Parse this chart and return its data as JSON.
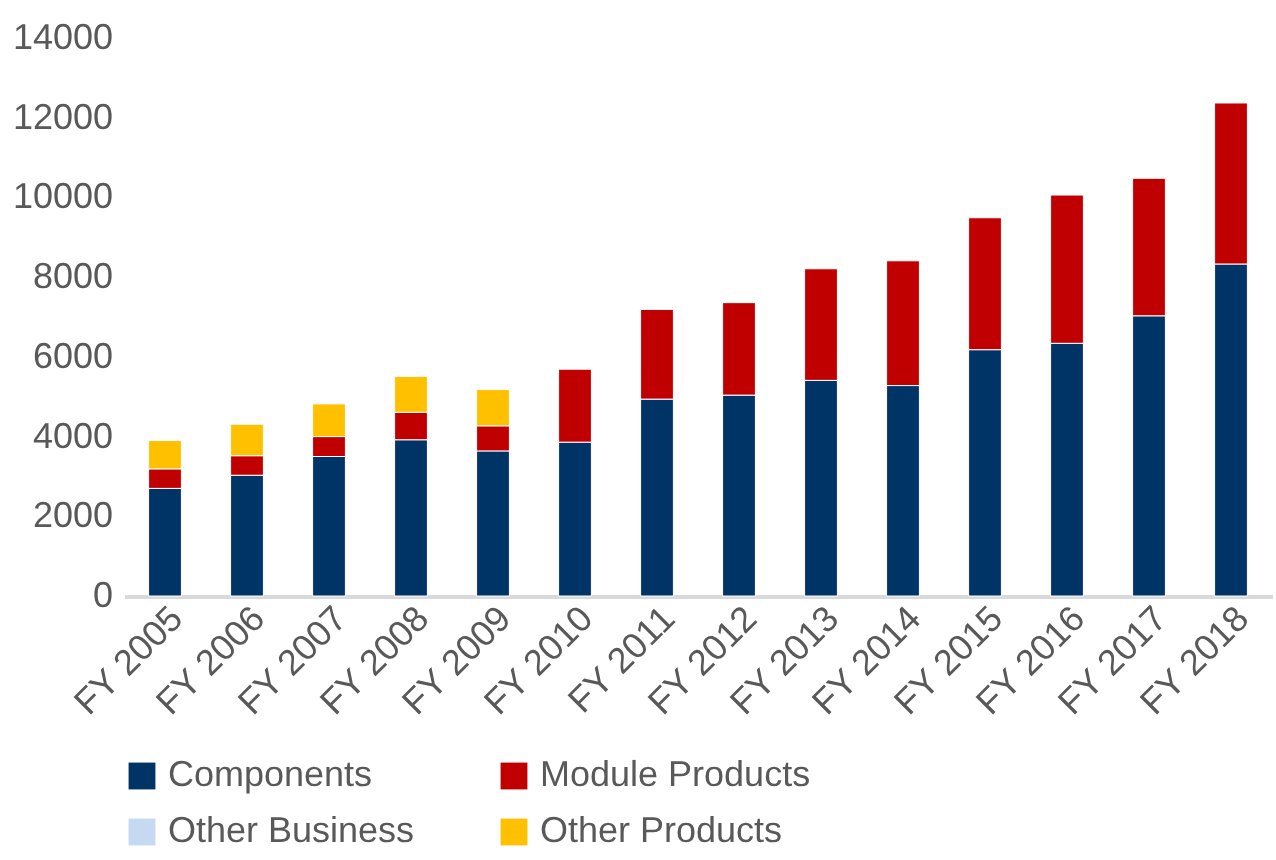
{
  "chart_data": {
    "type": "bar",
    "stacked": true,
    "categories": [
      "FY 2005",
      "FY 2006",
      "FY 2007",
      "FY 2008",
      "FY 2009",
      "FY 2010",
      "FY 2011",
      "FY 2012",
      "FY 2013",
      "FY 2014",
      "FY 2015",
      "FY 2016",
      "FY 2017",
      "FY 2018"
    ],
    "series": [
      {
        "name": "Components",
        "color": "#003366",
        "values": [
          2700,
          3030,
          3500,
          3920,
          3640,
          3860,
          4940,
          5040,
          5410,
          5280,
          6180,
          6340,
          7030,
          8330
        ]
      },
      {
        "name": "Module Products",
        "color": "#c00000",
        "values": [
          490,
          490,
          500,
          690,
          630,
          1830,
          2250,
          2320,
          2800,
          3130,
          3310,
          3720,
          3450,
          4040
        ]
      },
      {
        "name": "Other Business",
        "color": "#c5d9f1",
        "values": [
          null,
          null,
          null,
          null,
          null,
          null,
          null,
          null,
          null,
          null,
          null,
          null,
          null,
          null
        ]
      },
      {
        "name": "Other Products",
        "color": "#ffc000",
        "values": [
          710,
          790,
          820,
          900,
          910,
          null,
          null,
          null,
          null,
          null,
          null,
          null,
          null,
          null
        ]
      }
    ],
    "ylim": [
      0,
      14000
    ],
    "yticks": [
      0,
      2000,
      4000,
      6000,
      8000,
      10000,
      12000,
      14000
    ],
    "grid": false,
    "legend": "bottom"
  }
}
